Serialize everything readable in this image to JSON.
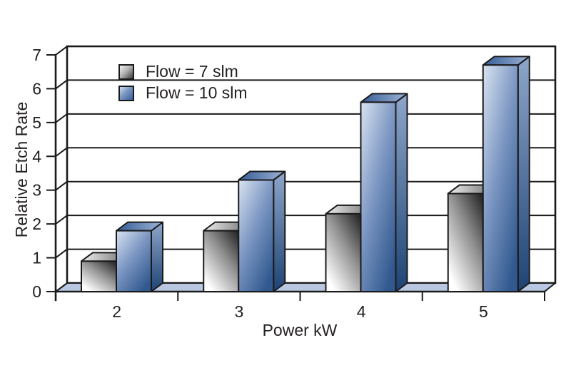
{
  "chart_data": {
    "type": "bar",
    "style": "pseudo-3d-column",
    "title": "",
    "xlabel": "Power kW",
    "ylabel": "Relative Etch Rate",
    "categories": [
      "2",
      "3",
      "4",
      "5"
    ],
    "series": [
      {
        "name": "Flow = 7 slm",
        "values": [
          0.9,
          1.8,
          2.3,
          2.9
        ]
      },
      {
        "name": "Flow = 10 slm",
        "values": [
          1.8,
          3.3,
          5.6,
          6.7
        ]
      }
    ],
    "ylim": [
      0,
      7
    ],
    "yticks": [
      0,
      1,
      2,
      3,
      4,
      5,
      6,
      7
    ],
    "grid": true,
    "legend_position": "top-left-inside",
    "colors": {
      "line": "#1a1a1a",
      "text": "#231f20",
      "floor": "#b9c7e2",
      "wall": "#ffffff",
      "gray_front_dark": "#2b2b2b",
      "gray_front_mid": "#909090",
      "gray_front_light": "#ffffff",
      "gray_top_light": "#f0f0f0",
      "gray_top_dark": "#6f6f6f",
      "blue_front_light": "#d9e3f1",
      "blue_front_mid": "#7b96c2",
      "blue_front_dark": "#31598f",
      "blue_top_dark": "#355c95",
      "blue_top_light": "#9db3d6",
      "blue_side_light": "#8ea6ca",
      "blue_side_dark": "#1e4373"
    }
  }
}
